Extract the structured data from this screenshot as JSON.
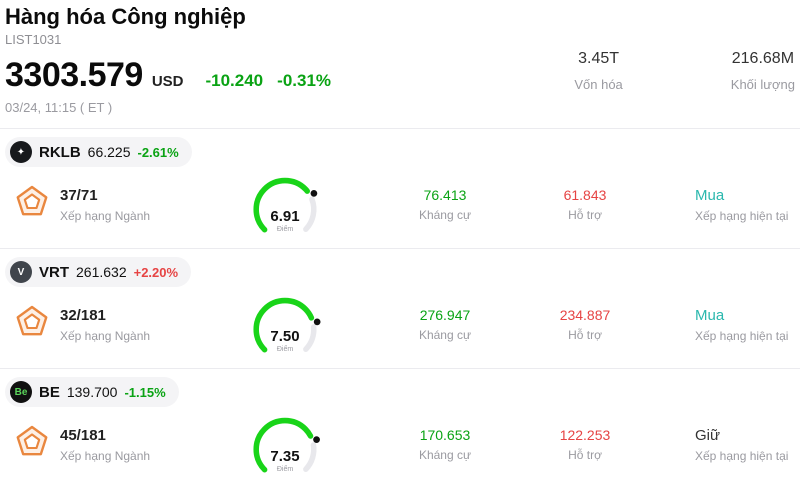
{
  "header": {
    "title": "Hàng hóa Công nghiệp",
    "subtitle": "LIST1031",
    "price": "3303.579",
    "currency": "USD",
    "change": "-10.240",
    "change_pct": "-0.31%",
    "change_color": "#0aa314",
    "timestamp": "03/24, 11:15 ( ET )",
    "stats": [
      {
        "value": "3.45T",
        "label": "Vốn hóa"
      },
      {
        "value": "216.68M",
        "label": "Khối lượng"
      }
    ]
  },
  "rows": [
    {
      "ticker": "RKLB",
      "price": "66.225",
      "change_pct": "-2.61%",
      "change_color": "#0aa314",
      "logo": {
        "text": "✦",
        "bg": "#17191c",
        "color": "#ffffff"
      },
      "rank": "37/71",
      "rank_label": "Xếp hạng Ngành",
      "score": "6.91",
      "score_label": "Điểm",
      "gauge_color": "#19d419",
      "resistance": "76.413",
      "resistance_color": "#0aa314",
      "resistance_label": "Kháng cự",
      "support": "61.843",
      "support_color": "#e64444",
      "support_label": "Hỗ trợ",
      "rating": "Mua",
      "rating_color": "#2bb8ae",
      "rating_label": "Xếp hạng hiện tại"
    },
    {
      "ticker": "VRT",
      "price": "261.632",
      "change_pct": "+2.20%",
      "change_color": "#e64444",
      "logo": {
        "text": "V",
        "bg": "#40454c",
        "color": "#ffffff"
      },
      "rank": "32/181",
      "rank_label": "Xếp hạng Ngành",
      "score": "7.50",
      "score_label": "Điểm",
      "gauge_color": "#19d419",
      "resistance": "276.947",
      "resistance_color": "#0aa314",
      "resistance_label": "Kháng cự",
      "support": "234.887",
      "support_color": "#e64444",
      "support_label": "Hỗ trợ",
      "rating": "Mua",
      "rating_color": "#2bb8ae",
      "rating_label": "Xếp hạng hiện tại"
    },
    {
      "ticker": "BE",
      "price": "139.700",
      "change_pct": "-1.15%",
      "change_color": "#0aa314",
      "logo": {
        "text": "Be",
        "bg": "#101010",
        "color": "#5ad45a"
      },
      "rank": "45/181",
      "rank_label": "Xếp hạng Ngành",
      "score": "7.35",
      "score_label": "Điểm",
      "gauge_color": "#19d419",
      "resistance": "170.653",
      "resistance_color": "#0aa314",
      "resistance_label": "Kháng cự",
      "support": "122.253",
      "support_color": "#e64444",
      "support_label": "Hỗ trợ",
      "rating": "Giữ",
      "rating_color": "#333333",
      "rating_label": "Xếp hạng hiện tại"
    }
  ]
}
